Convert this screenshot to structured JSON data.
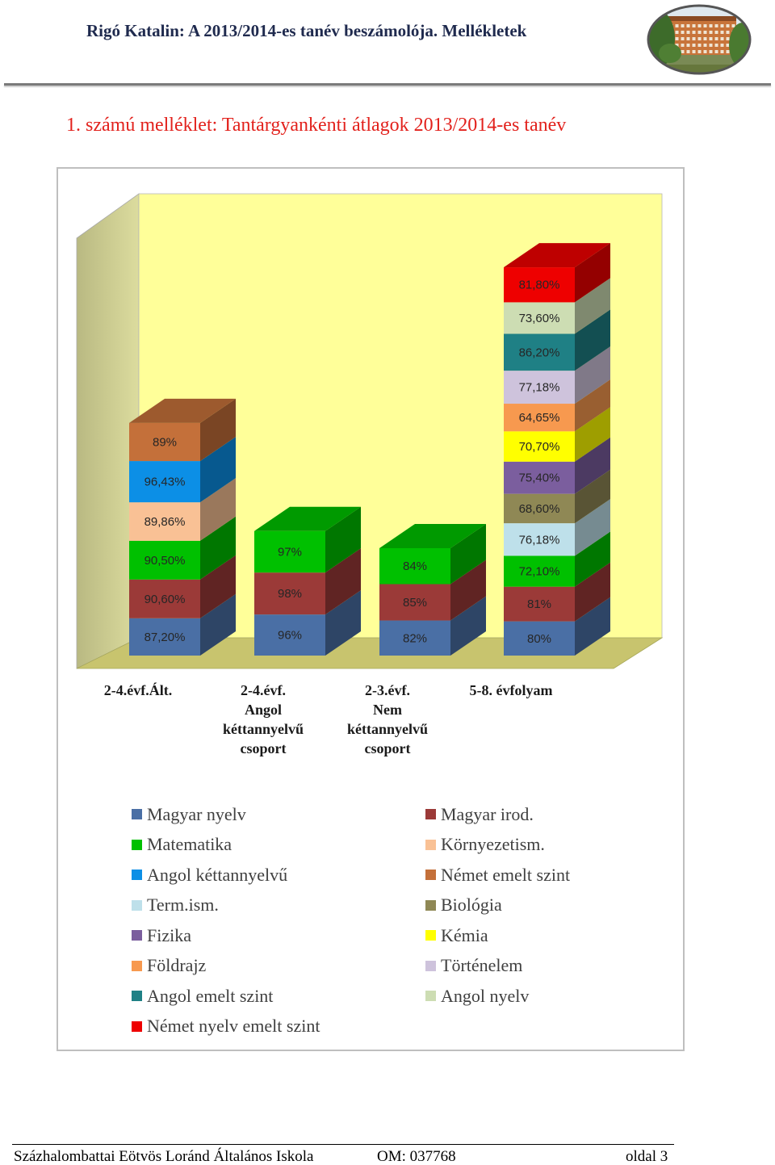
{
  "header": {
    "title": "Rigó Katalin: A 2013/2014-es tanév beszámolója. Mellékletek",
    "logo_icon": "school-building-photo"
  },
  "page_title": "1. számú melléklet: Tantárgyankénti átlagok 2013/2014-es tanév",
  "chart_data": {
    "type": "bar",
    "stacked": true,
    "style": "3d",
    "value_unit": "%",
    "grid": false,
    "legend_position": "bottom",
    "colors": {
      "back_wall": "#FFFF99",
      "side_wall": "#C9C98A",
      "floor": "#C8C46E"
    },
    "categories": [
      "2-4.évf.Ált.",
      "2-4.évf.\nAngol\nkéttannyelvű\ncsoport",
      "2-3.évf.\nNem\nkéttannyelvű\ncsoport",
      "5-8. évfolyam"
    ],
    "series": [
      {
        "name": "Magyar nyelv",
        "color": "#4A6FA5",
        "values": [
          87.2,
          96,
          82,
          80
        ],
        "labels": [
          "87,20%",
          "96%",
          "82%",
          "80%"
        ]
      },
      {
        "name": "Magyar irod.",
        "color": "#9B3A38",
        "values": [
          90.6,
          98,
          85,
          81
        ],
        "labels": [
          "90,60%",
          "98%",
          "85%",
          "81%"
        ]
      },
      {
        "name": "Matematika",
        "color": "#00C000",
        "values": [
          90.5,
          97,
          84,
          72.1
        ],
        "labels": [
          "90,50%",
          "97%",
          "84%",
          "72,10%"
        ]
      },
      {
        "name": "Környezetism.",
        "color": "#F9C195",
        "values": [
          89.86,
          null,
          null,
          null
        ],
        "labels": [
          "89,86%",
          null,
          null,
          null
        ]
      },
      {
        "name": "Angol kéttannyelvű",
        "color": "#0C8FE6",
        "values": [
          96.43,
          null,
          null,
          null
        ],
        "labels": [
          "96,43%",
          null,
          null,
          null
        ]
      },
      {
        "name": "Német emelt szint",
        "color": "#C4703A",
        "values": [
          89,
          null,
          null,
          null
        ],
        "labels": [
          "89%",
          null,
          null,
          null
        ]
      },
      {
        "name": "Term.ism.",
        "color": "#BEE0EA",
        "values": [
          null,
          null,
          null,
          76.18
        ],
        "labels": [
          null,
          null,
          null,
          "76,18%"
        ]
      },
      {
        "name": "Biológia",
        "color": "#8F8855",
        "values": [
          null,
          null,
          null,
          68.6
        ],
        "labels": [
          null,
          null,
          null,
          "68,60%"
        ]
      },
      {
        "name": "Fizika",
        "color": "#7B5E9E",
        "values": [
          null,
          null,
          null,
          75.4
        ],
        "labels": [
          null,
          null,
          null,
          "75,40%"
        ]
      },
      {
        "name": "Kémia",
        "color": "#FFFF00",
        "values": [
          null,
          null,
          null,
          70.7
        ],
        "labels": [
          null,
          null,
          null,
          "70,70%"
        ]
      },
      {
        "name": "Földrajz",
        "color": "#F7994F",
        "values": [
          null,
          null,
          null,
          64.65
        ],
        "labels": [
          null,
          null,
          null,
          "64,65%"
        ]
      },
      {
        "name": "Történelem",
        "color": "#CEC3DC",
        "values": [
          null,
          null,
          null,
          77.18
        ],
        "labels": [
          null,
          null,
          null,
          "77,18%"
        ]
      },
      {
        "name": "Angol emelt szint",
        "color": "#1F8085",
        "values": [
          null,
          null,
          null,
          86.2
        ],
        "labels": [
          null,
          null,
          null,
          "86,20%"
        ]
      },
      {
        "name": "Angol nyelv",
        "color": "#CDDDB3",
        "values": [
          null,
          null,
          null,
          73.6
        ],
        "labels": [
          null,
          null,
          null,
          "73,60%"
        ]
      },
      {
        "name": "Német nyelv emelt szint",
        "color": "#EE0000",
        "values": [
          null,
          null,
          null,
          81.8
        ],
        "labels": [
          null,
          null,
          null,
          "81,80%"
        ]
      }
    ]
  },
  "footer": {
    "school": "Százhalombattai Eötvös Loránd Általános Iskola",
    "om": "OM: 037768",
    "page": "oldal 3"
  }
}
